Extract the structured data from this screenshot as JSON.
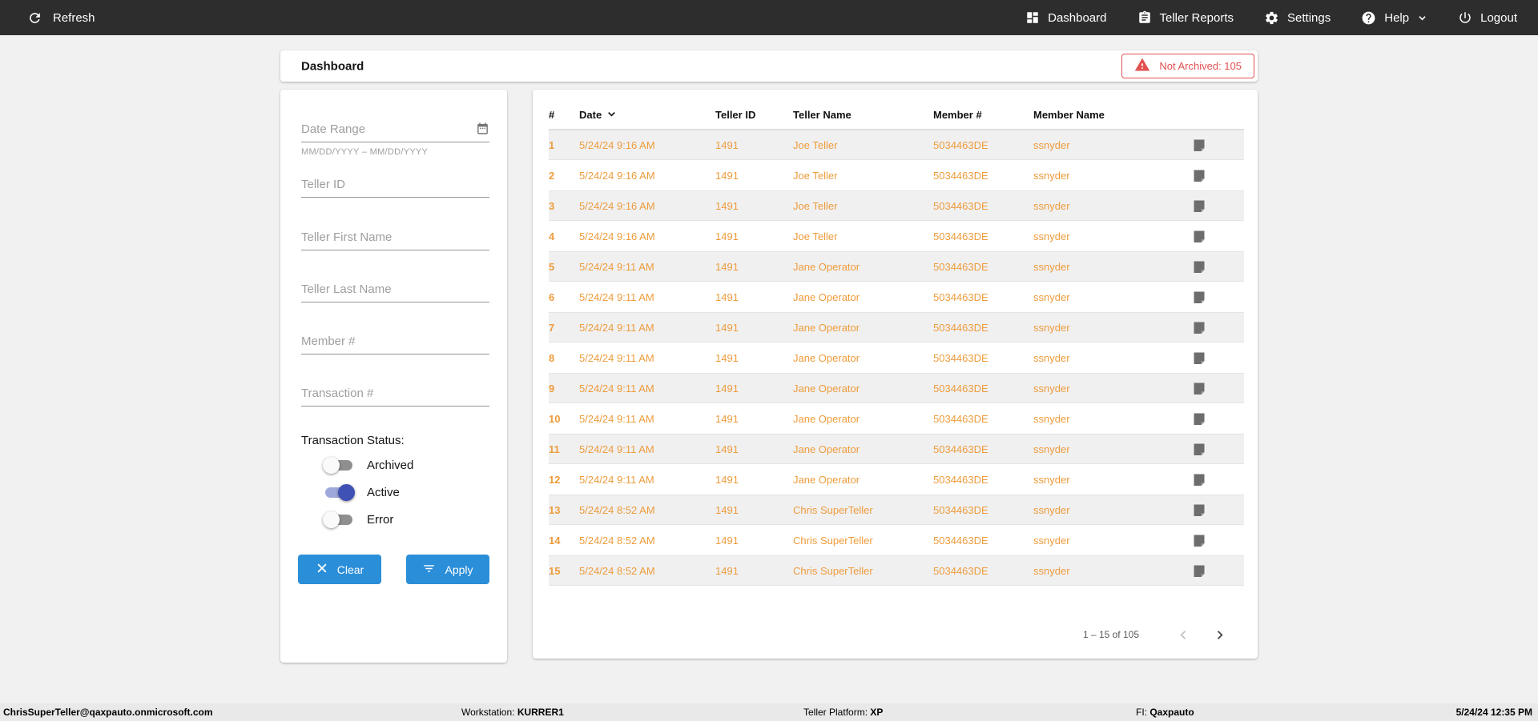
{
  "nav": {
    "refresh_label": "Refresh",
    "dashboard_label": "Dashboard",
    "teller_reports_label": "Teller Reports",
    "settings_label": "Settings",
    "help_label": "Help",
    "logout_label": "Logout"
  },
  "header": {
    "title": "Dashboard",
    "not_archived_badge": "Not Archived: 105"
  },
  "filters": {
    "date_range": {
      "placeholder": "Date Range",
      "hint": "MM/DD/YYYY – MM/DD/YYYY"
    },
    "fields": [
      "Teller ID",
      "Teller First Name",
      "Teller Last Name",
      "Member #",
      "Transaction #"
    ],
    "status_label": "Transaction Status:",
    "toggles": [
      {
        "label": "Archived",
        "on": false
      },
      {
        "label": "Active",
        "on": true
      },
      {
        "label": "Error",
        "on": false
      }
    ],
    "clear_label": "Clear",
    "apply_label": "Apply"
  },
  "table": {
    "columns": [
      "#",
      "Date",
      "Teller ID",
      "Teller Name",
      "Member #",
      "Member Name"
    ],
    "rows": [
      {
        "num": "1",
        "date": "5/24/24 9:16 AM",
        "teller_id": "1491",
        "teller_name": "Joe Teller",
        "member_number": "5034463DE",
        "member_name": "ssnyder"
      },
      {
        "num": "2",
        "date": "5/24/24 9:16 AM",
        "teller_id": "1491",
        "teller_name": "Joe Teller",
        "member_number": "5034463DE",
        "member_name": "ssnyder"
      },
      {
        "num": "3",
        "date": "5/24/24 9:16 AM",
        "teller_id": "1491",
        "teller_name": "Joe Teller",
        "member_number": "5034463DE",
        "member_name": "ssnyder"
      },
      {
        "num": "4",
        "date": "5/24/24 9:16 AM",
        "teller_id": "1491",
        "teller_name": "Joe Teller",
        "member_number": "5034463DE",
        "member_name": "ssnyder"
      },
      {
        "num": "5",
        "date": "5/24/24 9:11 AM",
        "teller_id": "1491",
        "teller_name": "Jane Operator",
        "member_number": "5034463DE",
        "member_name": "ssnyder"
      },
      {
        "num": "6",
        "date": "5/24/24 9:11 AM",
        "teller_id": "1491",
        "teller_name": "Jane Operator",
        "member_number": "5034463DE",
        "member_name": "ssnyder"
      },
      {
        "num": "7",
        "date": "5/24/24 9:11 AM",
        "teller_id": "1491",
        "teller_name": "Jane Operator",
        "member_number": "5034463DE",
        "member_name": "ssnyder"
      },
      {
        "num": "8",
        "date": "5/24/24 9:11 AM",
        "teller_id": "1491",
        "teller_name": "Jane Operator",
        "member_number": "5034463DE",
        "member_name": "ssnyder"
      },
      {
        "num": "9",
        "date": "5/24/24 9:11 AM",
        "teller_id": "1491",
        "teller_name": "Jane Operator",
        "member_number": "5034463DE",
        "member_name": "ssnyder"
      },
      {
        "num": "10",
        "date": "5/24/24 9:11 AM",
        "teller_id": "1491",
        "teller_name": "Jane Operator",
        "member_number": "5034463DE",
        "member_name": "ssnyder"
      },
      {
        "num": "11",
        "date": "5/24/24 9:11 AM",
        "teller_id": "1491",
        "teller_name": "Jane Operator",
        "member_number": "5034463DE",
        "member_name": "ssnyder"
      },
      {
        "num": "12",
        "date": "5/24/24 9:11 AM",
        "teller_id": "1491",
        "teller_name": "Jane Operator",
        "member_number": "5034463DE",
        "member_name": "ssnyder"
      },
      {
        "num": "13",
        "date": "5/24/24 8:52 AM",
        "teller_id": "1491",
        "teller_name": "Chris SuperTeller",
        "member_number": "5034463DE",
        "member_name": "ssnyder"
      },
      {
        "num": "14",
        "date": "5/24/24 8:52 AM",
        "teller_id": "1491",
        "teller_name": "Chris SuperTeller",
        "member_number": "5034463DE",
        "member_name": "ssnyder"
      },
      {
        "num": "15",
        "date": "5/24/24 8:52 AM",
        "teller_id": "1491",
        "teller_name": "Chris SuperTeller",
        "member_number": "5034463DE",
        "member_name": "ssnyder"
      }
    ],
    "pagination": {
      "range_label": "1 – 15 of 105"
    }
  },
  "footer": {
    "user_email": "ChrisSuperTeller@qaxpauto.onmicrosoft.com",
    "workstation_label": "Workstation: ",
    "workstation_value": "KURRER1",
    "platform_label": "Teller Platform: ",
    "platform_value": "XP",
    "fi_label": "FI: ",
    "fi_value": "Qaxpauto",
    "datetime": "5/24/24 12:35 PM"
  },
  "colors": {
    "nav_bg": "#2D2D2D",
    "accent_blue": "#2B8ED8",
    "row_orange": "#EE9C3C",
    "alert_red": "#E25050",
    "toggle_on_thumb": "#3F51B5",
    "toggle_on_track": "#9FA8DA"
  }
}
